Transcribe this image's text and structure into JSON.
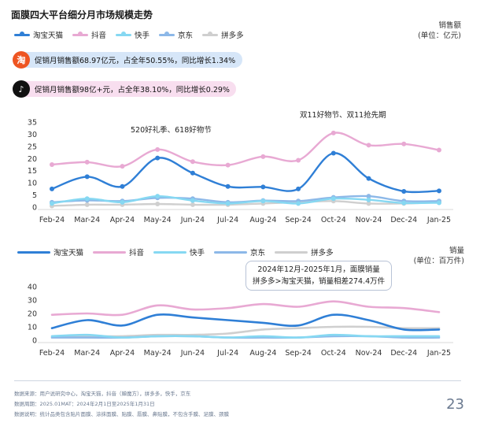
{
  "title": "面膜四大平台细分月市场规模走势",
  "colors": {
    "tmall": "#2f7fd6",
    "douyin": "#e8a9d3",
    "kuaishou": "#86d8f2",
    "jd": "#8cb8e8",
    "pdd": "#cfcfcf",
    "banner1_bg": "#d6e6f8",
    "banner2_bg": "#f8deef",
    "taobao_icon": "#ee5522",
    "douyin_icon": "#111111",
    "footer": "#6b7a90"
  },
  "legend": [
    "淘宝天猫",
    "抖音",
    "快手",
    "京东",
    "拼多多"
  ],
  "chart1": {
    "unit_line1": "销售额",
    "unit_line2": "(单位：亿元)",
    "banner1": {
      "icon": "淘",
      "text": "促销月销售额68.97亿元，占全年50.55%，同比增长1.34%"
    },
    "banner2": {
      "icon": "♪",
      "text": "促销月销售额98亿+元，占全年38.10%，同比增长0.29%"
    },
    "annotation1": "520好礼季、618好物节",
    "annotation2": "双11好物节、双11抢先期"
  },
  "chart2": {
    "unit_line1": "销量",
    "unit_line2": "(单位：百万件)",
    "callout_line1": "2024年12月-2025年1月，面膜销量",
    "callout_line2": "拼多多>淘宝天猫，销量相差274.4万件"
  },
  "footer": {
    "line1": "数据来源：用户说研究中心，淘宝天猫，抖音（蝉魔方），拼多多，快手，京东",
    "line2": "数据周期：2025.01MAT：2024年2月1日至2025年1月31日",
    "line3": "数据说明：统计品类包含贴片面膜、涂抹面膜、贴膜、唇膜、鼻贴膜，不包含手膜、足膜、颈膜"
  },
  "page_number": "23",
  "chart_data": [
    {
      "type": "line",
      "title": "面膜四大平台细分月市场规模走势",
      "ylabel": "销售额 (单位：亿元)",
      "ylim": [
        0,
        35
      ],
      "yticks": [
        "0",
        "5",
        "10",
        "15",
        "20",
        "25",
        "30",
        "35"
      ],
      "grid": false,
      "markers": true,
      "categories": [
        "Feb-24",
        "Mar-24",
        "Apr-24",
        "May-24",
        "Jun-24",
        "Jul-24",
        "Aug-24",
        "Sep-24",
        "Oct-24",
        "Nov-24",
        "Dec-24",
        "Jan-25"
      ],
      "series": [
        {
          "name": "淘宝天猫",
          "color": "#2f7fd6",
          "values": [
            7.5,
            12.5,
            8.5,
            20.2,
            14.0,
            8.5,
            8.3,
            7.5,
            22.2,
            11.8,
            6.5,
            6.7
          ]
        },
        {
          "name": "抖音",
          "color": "#e8a9d3",
          "values": [
            17.5,
            18.5,
            16.8,
            23.7,
            18.7,
            17.3,
            20.8,
            19.3,
            30.5,
            25.5,
            26.0,
            23.5
          ]
        },
        {
          "name": "快手",
          "color": "#86d8f2",
          "values": [
            1.5,
            3.5,
            2.0,
            4.5,
            2.7,
            1.5,
            2.5,
            1.5,
            3.5,
            3.0,
            1.7,
            1.8
          ]
        },
        {
          "name": "京东",
          "color": "#8cb8e8",
          "values": [
            2.0,
            2.8,
            2.5,
            3.8,
            3.5,
            2.0,
            2.7,
            2.5,
            4.0,
            4.5,
            2.5,
            2.5
          ]
        },
        {
          "name": "拼多多",
          "color": "#cfcfcf",
          "values": [
            0.5,
            1.0,
            1.0,
            1.3,
            1.0,
            1.0,
            1.5,
            2.0,
            2.5,
            1.5,
            1.5,
            2.0
          ]
        }
      ]
    },
    {
      "type": "line",
      "ylabel": "销量 (单位：百万件)",
      "ylim": [
        0,
        40
      ],
      "yticks": [
        "0",
        "10",
        "20",
        "30",
        "40"
      ],
      "grid": false,
      "markers": false,
      "smooth": true,
      "categories": [
        "Feb-24",
        "Mar-24",
        "Apr-24",
        "May-24",
        "Jun-24",
        "Jul-24",
        "Aug-24",
        "Sep-24",
        "Oct-24",
        "Nov-24",
        "Dec-24",
        "Jan-25"
      ],
      "series": [
        {
          "name": "淘宝天猫",
          "color": "#2f7fd6",
          "values": [
            9,
            15,
            11,
            19,
            17,
            15,
            13,
            11,
            19,
            15,
            8,
            8
          ]
        },
        {
          "name": "抖音",
          "color": "#e8a9d3",
          "values": [
            19,
            20,
            19,
            26,
            23,
            24,
            27,
            25,
            29,
            25,
            24,
            21
          ]
        },
        {
          "name": "快手",
          "color": "#86d8f2",
          "values": [
            3,
            4,
            2,
            3,
            3,
            2,
            3,
            2,
            4,
            3,
            3,
            3
          ]
        },
        {
          "name": "京东",
          "color": "#8cb8e8",
          "values": [
            2,
            2,
            2,
            3,
            3,
            2,
            2,
            2,
            3,
            3,
            2,
            2
          ]
        },
        {
          "name": "拼多多",
          "color": "#cfcfcf",
          "values": [
            3,
            3,
            3,
            4,
            4,
            5,
            8,
            9,
            10,
            10,
            9,
            9
          ]
        }
      ]
    }
  ]
}
